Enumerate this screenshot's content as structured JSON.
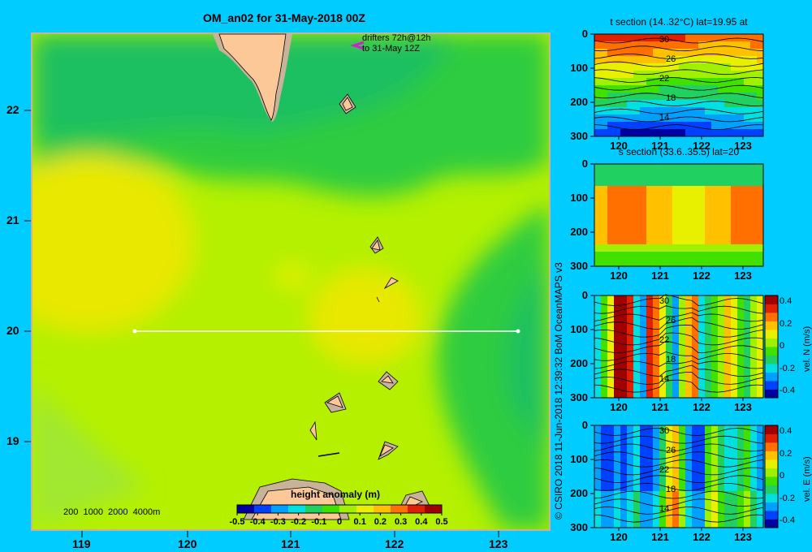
{
  "map": {
    "title": "OM_an02 for 31-May-2018 00Z",
    "drifter_note_line1": "drifters 72h@12h",
    "drifter_note_line2": "to 31-May 12Z",
    "lat_ticks": [
      "22",
      "21",
      "20",
      "19"
    ],
    "lon_ticks": [
      "119",
      "120",
      "121",
      "122",
      "123"
    ],
    "depth_scale": "200  1000  2000  4000m",
    "colorbar_title": "height anomaly  (m)",
    "colorbar_ticks": [
      "-0.5",
      "-0.4",
      "-0.3",
      "-0.2",
      "-0.1",
      "0",
      "0.1",
      "0.2",
      "0.3",
      "0.4",
      "0.5"
    ],
    "section_line": {
      "lat": 20,
      "lon_start": 119.5,
      "lon_end": 123.2
    }
  },
  "credit": "© CSIRO 2018   11-Jun-2018 12:39:32 BoM OceanMAPS v3",
  "panels": [
    {
      "title": "t section (14..32°C) lat=19.95 at",
      "contours": [
        "30",
        "26",
        "22",
        "18",
        "14"
      ],
      "colorbar": null
    },
    {
      "title": "s section (33.6..35.5) lat=20",
      "contours": [],
      "colorbar": null
    },
    {
      "title": "",
      "contours": [
        "30",
        "26",
        "22",
        "18",
        "14"
      ],
      "colorbar": {
        "label": "vel. N (m/s)",
        "ticks": [
          "0.4",
          "0.2",
          "0",
          "-0.2",
          "-0.4"
        ]
      }
    },
    {
      "title": "",
      "contours": [
        "30",
        "26",
        "22",
        "18",
        "14"
      ],
      "colorbar": {
        "label": "vel. E (m/s)",
        "ticks": [
          "0.4",
          "0.2",
          "0",
          "-0.2",
          "-0.4"
        ]
      }
    }
  ],
  "panel_depth_ticks": [
    "0",
    "100",
    "200",
    "300"
  ],
  "panel_lon_ticks": [
    "120",
    "121",
    "122",
    "123"
  ],
  "colors": {
    "background": "#00ccff",
    "land": "#fdc898",
    "shelf": "#c8b29a",
    "colormap": [
      "#0000a0",
      "#0040ff",
      "#00a0ff",
      "#00e0e0",
      "#20d060",
      "#40e000",
      "#a0f000",
      "#e8f000",
      "#ffc000",
      "#ff7000",
      "#e02000",
      "#a00000"
    ]
  }
}
